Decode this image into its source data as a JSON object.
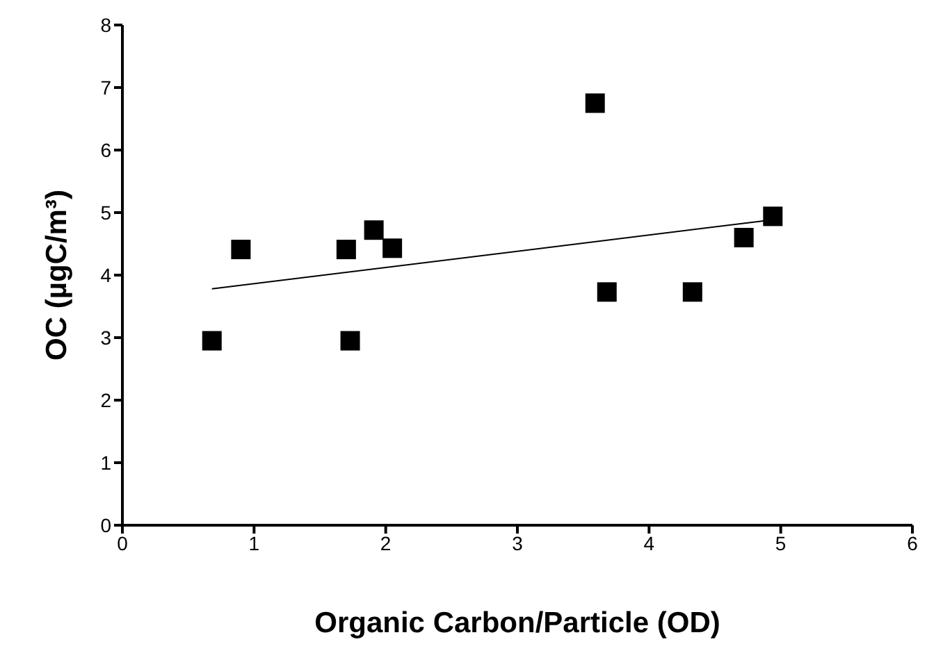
{
  "chart_data": {
    "type": "scatter",
    "xlabel": "Organic Carbon/Particle (OD)",
    "ylabel": "OC (µgC/m³)",
    "marker": "square",
    "grid": false,
    "x": [
      0.68,
      0.9,
      1.7,
      1.73,
      1.91,
      2.05,
      3.59,
      3.68,
      4.33,
      4.72,
      4.94
    ],
    "series": [
      {
        "color": "#000000",
        "values": [
          2.95,
          4.41,
          4.41,
          2.95,
          4.72,
          4.43,
          6.75,
          3.73,
          3.73,
          4.6,
          4.94
        ]
      },
      {
        "type": "line",
        "marker": "none",
        "color": "#000000",
        "x": [
          0.68,
          4.88
        ],
        "values": [
          3.78,
          4.87
        ]
      }
    ],
    "xlim": [
      0,
      6
    ],
    "xticks": [
      0,
      1,
      2,
      3,
      4,
      5,
      6
    ],
    "ylim": [
      0,
      8
    ],
    "yticks": [
      0,
      1,
      2,
      3,
      4,
      5,
      6,
      7,
      8
    ]
  }
}
